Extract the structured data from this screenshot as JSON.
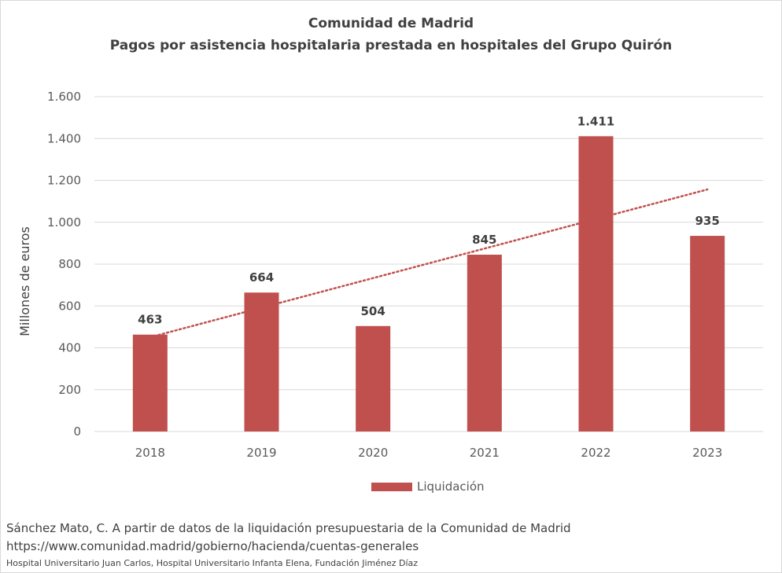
{
  "chart_data": {
    "type": "bar",
    "title": "Comunidad de Madrid",
    "subtitle": "Pagos por asistencia hospitalaria prestada en hospitales del Grupo Quirón",
    "categories": [
      "2018",
      "2019",
      "2020",
      "2021",
      "2022",
      "2023"
    ],
    "series": [
      {
        "name": "Liquidación",
        "values": [
          463,
          664,
          504,
          845,
          1411,
          935
        ],
        "color": "#c0504d"
      }
    ],
    "data_labels": [
      "463",
      "664",
      "504",
      "845",
      "1.411",
      "935"
    ],
    "trendline": {
      "type": "linear",
      "color": "#c0504d",
      "style": "dotted"
    },
    "ylabel": "Millones de euros",
    "xlabel": "",
    "ylim": [
      0,
      1600
    ],
    "yticks": [
      0,
      200,
      400,
      600,
      800,
      1000,
      1200,
      1400,
      1600
    ],
    "ytick_labels": [
      "0",
      "200",
      "400",
      "600",
      "800",
      "1.000",
      "1.200",
      "1.400",
      "1.600"
    ],
    "grid": true,
    "legend_position": "bottom"
  },
  "source": {
    "line1": "Sánchez Mato, C.  A partir de datos de la liquidación presupuestaria de la Comunidad de Madrid",
    "line2": "https://www.comunidad.madrid/gobierno/hacienda/cuentas-generales",
    "line3": "Hospital Universitario Juan Carlos, Hospital Universitario Infanta Elena, Fundación Jiménez Díaz"
  }
}
